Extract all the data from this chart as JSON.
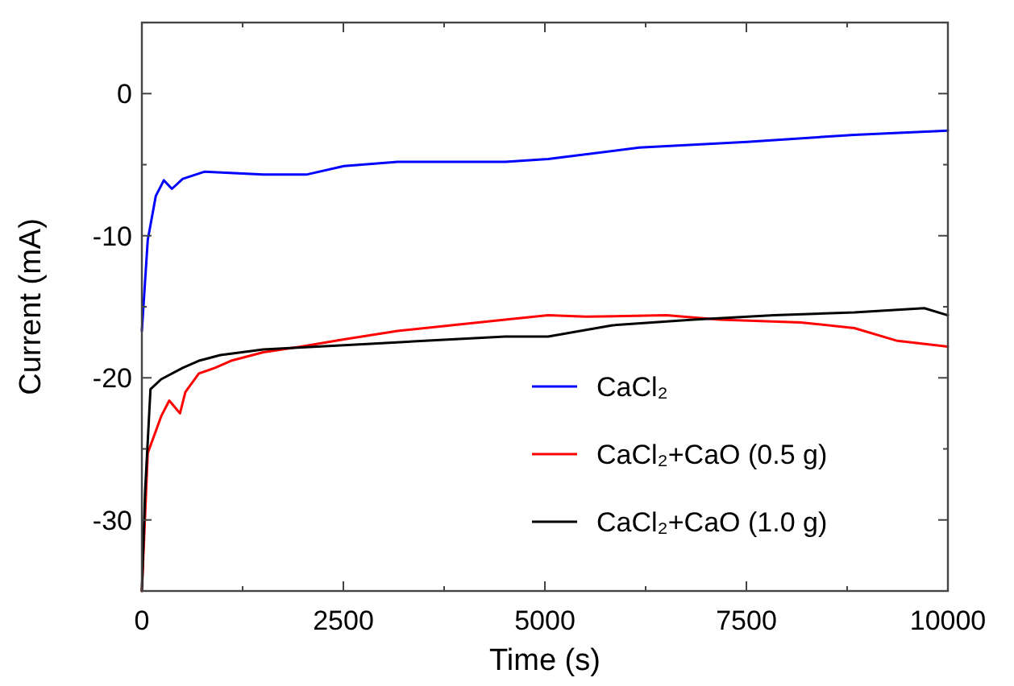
{
  "chart_data": {
    "type": "line",
    "xlabel": "Time (s)",
    "ylabel": "Current (mA)",
    "xlim": [
      0,
      10000
    ],
    "xticks": [
      0,
      {
        "value": 1250,
        "label": null
      },
      2500,
      {
        "value": 3750,
        "label": null
      },
      5000,
      {
        "value": 6250,
        "label": null
      },
      7500,
      {
        "value": 8750,
        "label": null
      },
      10000
    ],
    "ylim": [
      -35,
      5
    ],
    "yticks": [
      {
        "value": -35,
        "label": null
      },
      -30,
      {
        "value": -25,
        "label": null
      },
      -20,
      {
        "value": -15,
        "label": null
      },
      -10,
      {
        "value": -5,
        "label": null
      },
      0,
      {
        "value": 5,
        "label": null
      }
    ],
    "grid": false,
    "legend": "bottom right",
    "marker": "none",
    "line_style": "solid",
    "series": [
      {
        "name": "CaCl₂",
        "color": "#0000ff",
        "x": [
          0,
          73,
          173,
          273,
          373,
          507,
          773,
          1507,
          2040,
          2507,
          3173,
          4507,
          5040,
          6173,
          7507,
          8840,
          10000
        ],
        "values": [
          -16.7,
          -10.3,
          -7.2,
          -6.1,
          -6.7,
          -6.0,
          -5.5,
          -5.7,
          -5.7,
          -5.1,
          -4.8,
          -4.8,
          -4.6,
          -3.8,
          -3.4,
          -2.9,
          -2.6
        ]
      },
      {
        "name": "CaCl₂+CaO (0.5 g)",
        "color": "#ff0000",
        "x": [
          0,
          73,
          240,
          340,
          473,
          540,
          707,
          907,
          1107,
          1507,
          1973,
          2507,
          3173,
          3840,
          4507,
          5040,
          5507,
          6507,
          7173,
          8173,
          8840,
          9373,
          10000
        ],
        "values": [
          -35,
          -25.3,
          -22.7,
          -21.6,
          -22.5,
          -21.0,
          -19.7,
          -19.3,
          -18.8,
          -18.2,
          -17.8,
          -17.3,
          -16.7,
          -16.3,
          -15.9,
          -15.6,
          -15.7,
          -15.6,
          -15.9,
          -16.1,
          -16.5,
          -17.4,
          -17.8
        ]
      },
      {
        "name": "CaCl₂+CaO (1.0 g)",
        "color": "#000000",
        "x": [
          0,
          40,
          107,
          240,
          507,
          707,
          973,
          1507,
          2173,
          2840,
          3507,
          4507,
          5040,
          5840,
          6840,
          7840,
          8840,
          9707,
          10000
        ],
        "values": [
          -35,
          -28,
          -20.8,
          -20.1,
          -19.3,
          -18.8,
          -18.4,
          -18.0,
          -17.8,
          -17.6,
          -17.4,
          -17.1,
          -17.1,
          -16.3,
          -15.9,
          -15.6,
          -15.4,
          -15.1,
          -15.6
        ]
      }
    ]
  }
}
